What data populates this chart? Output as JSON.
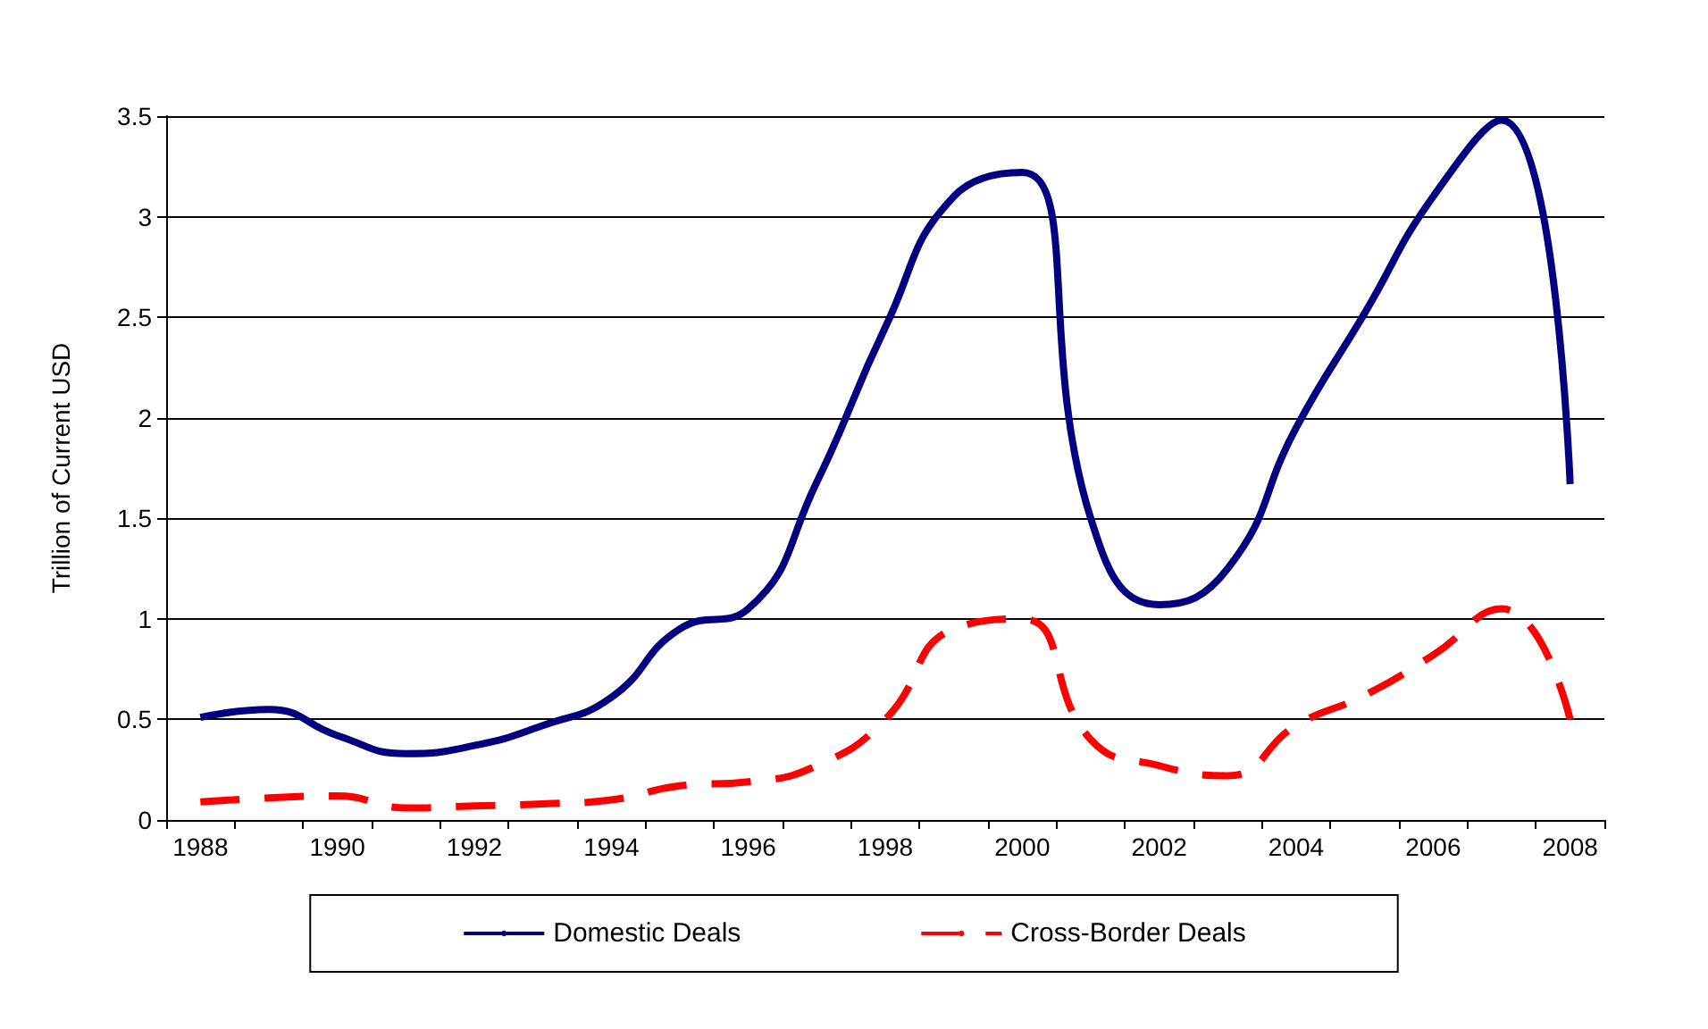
{
  "chart_data": {
    "type": "line",
    "ylabel": "Trillion of Current USD",
    "categories": [
      "1988",
      null,
      "1990",
      null,
      "1992",
      null,
      "1994",
      null,
      "1996",
      null,
      "1998",
      null,
      "2000",
      null,
      "2002",
      null,
      "2004",
      null,
      "2006",
      null,
      "2008"
    ],
    "series": [
      {
        "name": "Domestic Deals",
        "color": "#000080",
        "line_style": "solid",
        "values": [
          0.51,
          0.55,
          0.42,
          0.33,
          0.37,
          0.47,
          0.61,
          0.95,
          1.05,
          1.68,
          2.45,
          3.1,
          3.22,
          1.5,
          1.07,
          1.25,
          1.95,
          2.52,
          3.1,
          3.48,
          1.67
        ]
      },
      {
        "name": "Cross-Border Deals",
        "color": "#ff0000",
        "line_style": "dashed",
        "values": [
          0.09,
          0.11,
          0.12,
          0.06,
          0.07,
          0.08,
          0.1,
          0.17,
          0.19,
          0.27,
          0.5,
          0.95,
          1.0,
          0.4,
          0.27,
          0.22,
          0.47,
          0.62,
          0.82,
          1.05,
          0.5
        ]
      }
    ],
    "ylim": [
      0,
      3.5
    ],
    "yticks": [
      0,
      0.5,
      1,
      1.5,
      2,
      2.5,
      3,
      3.5
    ],
    "grid": "y",
    "legend": "bottom",
    "marker": "none"
  }
}
